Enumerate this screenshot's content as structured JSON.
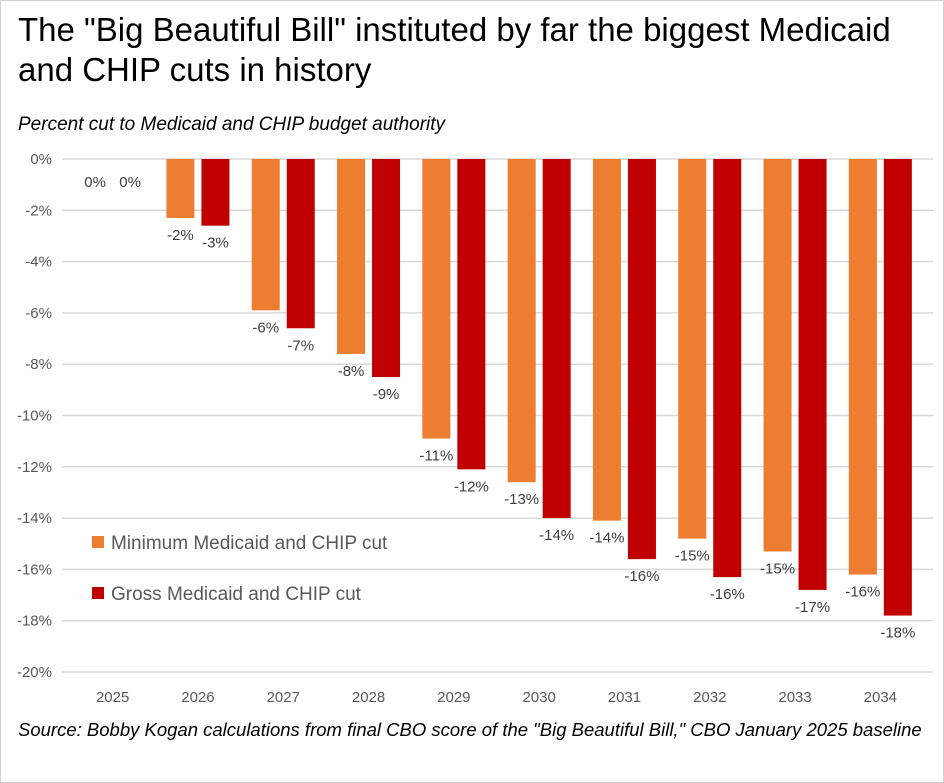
{
  "chart_data": {
    "type": "bar",
    "title": "The \"Big Beautiful Bill\" instituted by far the biggest Medicaid and CHIP cuts in history",
    "subtitle": "Percent cut to Medicaid and CHIP budget authority",
    "source": "Source: Bobby Kogan calculations from final CBO score of the \"Big Beautiful Bill,\" CBO January 2025 baseline",
    "categories": [
      "2025",
      "2026",
      "2027",
      "2028",
      "2029",
      "2030",
      "2031",
      "2032",
      "2033",
      "2034"
    ],
    "ylim": [
      -20,
      0
    ],
    "yticks": [
      0,
      -2,
      -4,
      -6,
      -8,
      -10,
      -12,
      -14,
      -16,
      -18,
      -20
    ],
    "ytick_labels": [
      "0%",
      "-2%",
      "-4%",
      "-6%",
      "-8%",
      "-10%",
      "-12%",
      "-14%",
      "-16%",
      "-18%",
      "-20%"
    ],
    "grid": true,
    "legend_position": "bottom-left",
    "series": [
      {
        "name": "Minimum Medicaid and CHIP cut",
        "color": "#ED7D31",
        "values": [
          0,
          -2.3,
          -5.9,
          -7.6,
          -10.9,
          -12.6,
          -14.1,
          -14.8,
          -15.3,
          -16.2
        ],
        "labels": [
          "0%",
          "-2%",
          "-6%",
          "-8%",
          "-11%",
          "-13%",
          "-14%",
          "-15%",
          "-15%",
          "-16%"
        ]
      },
      {
        "name": "Gross Medicaid and CHIP cut",
        "color": "#C00000",
        "values": [
          0,
          -2.6,
          -6.6,
          -8.5,
          -12.1,
          -14.0,
          -15.6,
          -16.3,
          -16.8,
          -17.8
        ],
        "labels": [
          "0%",
          "-3%",
          "-7%",
          "-9%",
          "-12%",
          "-14%",
          "-16%",
          "-16%",
          "-17%",
          "-18%"
        ]
      }
    ]
  }
}
